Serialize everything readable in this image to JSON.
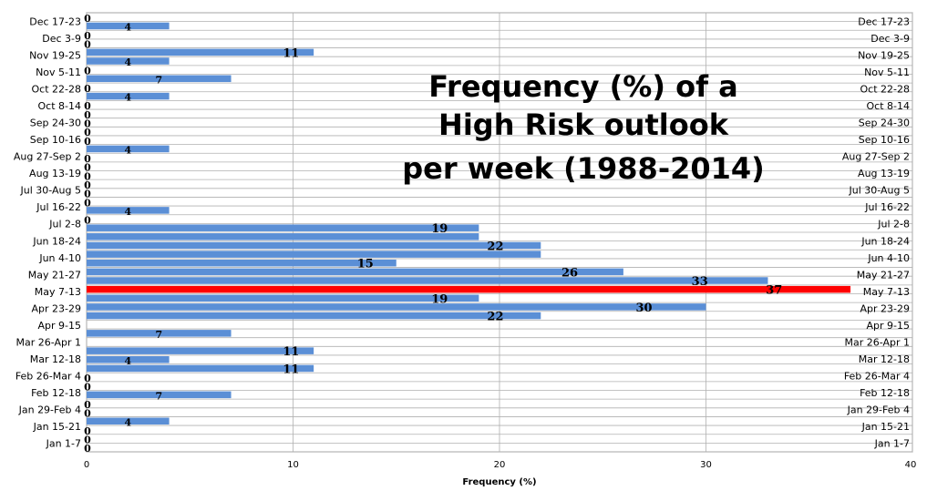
{
  "chart_data": {
    "type": "bar",
    "orientation": "horizontal",
    "title_lines": [
      "Frequency (%) of a",
      "High Risk outlook",
      "per week (1988-2014)"
    ],
    "xlabel": "Frequency (%)",
    "xlim": [
      0,
      40
    ],
    "xticks": [
      "0",
      "10",
      "20",
      "30",
      "40"
    ],
    "grid": true,
    "highlight_color": "#ff0000",
    "bar_color": "#5b8fd6",
    "bars": [
      {
        "value": 0,
        "label": "0"
      },
      {
        "value": 4,
        "label": "4"
      },
      {
        "value": 0,
        "label": "0"
      },
      {
        "value": 0,
        "label": "0"
      },
      {
        "value": 11,
        "label": "11"
      },
      {
        "value": 4,
        "label": "4"
      },
      {
        "value": 0,
        "label": "0"
      },
      {
        "value": 7,
        "label": "7"
      },
      {
        "value": 0,
        "label": "0"
      },
      {
        "value": 4,
        "label": "4"
      },
      {
        "value": 0,
        "label": "0"
      },
      {
        "value": 0,
        "label": "0"
      },
      {
        "value": 0,
        "label": "0"
      },
      {
        "value": 0,
        "label": "0"
      },
      {
        "value": 0,
        "label": "0"
      },
      {
        "value": 4,
        "label": "4"
      },
      {
        "value": 0,
        "label": "0"
      },
      {
        "value": 0,
        "label": "0"
      },
      {
        "value": 0,
        "label": "0"
      },
      {
        "value": 0,
        "label": "0"
      },
      {
        "value": 0,
        "label": "0"
      },
      {
        "value": 0,
        "label": "0"
      },
      {
        "value": 4,
        "label": "4"
      },
      {
        "value": 0,
        "label": "0"
      },
      {
        "value": 19,
        "label": "19"
      },
      {
        "value": 19,
        "label": ""
      },
      {
        "value": 22,
        "label": "22"
      },
      {
        "value": 22,
        "label": ""
      },
      {
        "value": 15,
        "label": "15"
      },
      {
        "value": 26,
        "label": "26"
      },
      {
        "value": 33,
        "label": "33"
      },
      {
        "value": 37,
        "label": "37",
        "highlight": true
      },
      {
        "value": 19,
        "label": "19"
      },
      {
        "value": 30,
        "label": "30"
      },
      {
        "value": 22,
        "label": "22"
      },
      {
        "value": 0,
        "label": ""
      },
      {
        "value": 7,
        "label": "7"
      },
      {
        "value": 0,
        "label": ""
      },
      {
        "value": 11,
        "label": "11"
      },
      {
        "value": 4,
        "label": "4"
      },
      {
        "value": 11,
        "label": "11"
      },
      {
        "value": 0,
        "label": "0"
      },
      {
        "value": 0,
        "label": "0"
      },
      {
        "value": 7,
        "label": "7"
      },
      {
        "value": 0,
        "label": "0"
      },
      {
        "value": 0,
        "label": "0"
      },
      {
        "value": 4,
        "label": "4"
      },
      {
        "value": 0,
        "label": "0"
      },
      {
        "value": 0,
        "label": "0"
      },
      {
        "value": 0,
        "label": "0"
      }
    ],
    "category_labels": [
      "Dec 17-23",
      "Dec 3-9",
      "Nov 19-25",
      "Nov 5-11",
      "Oct 22-28",
      "Oct 8-14",
      "Sep 24-30",
      "Sep 10-16",
      "Aug 27-Sep 2",
      "Aug 13-19",
      "Jul 30-Aug 5",
      "Jul 16-22",
      "Jul 2-8",
      "Jun 18-24",
      "Jun 4-10",
      "May 21-27",
      "May 7-13",
      "Apr 23-29",
      "Apr 9-15",
      "Mar 26-Apr 1",
      "Mar 12-18",
      "Feb 26-Mar 4",
      "Feb 12-18",
      "Jan 29-Feb 4",
      "Jan 15-21",
      "Jan 1-7"
    ]
  }
}
